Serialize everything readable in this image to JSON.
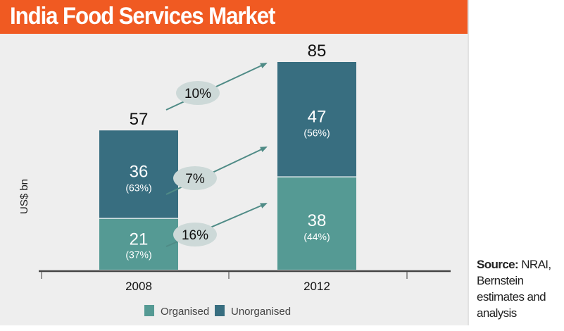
{
  "title": "India Food Services Market",
  "source": {
    "label": "Source:",
    "text": "NRAI, Bernstein estimates and analysis"
  },
  "colors": {
    "title_bar": "#f05a22",
    "organised": "#559a94",
    "unorganised": "#386e80",
    "bubble": "#cdd9d8",
    "arrow": "#4f8b86",
    "background": "#eeeeee"
  },
  "chart_data": {
    "type": "bar",
    "stacked": true,
    "title": "India Food Services Market",
    "xlabel": "",
    "ylabel": "US$ bn",
    "categories": [
      "2008",
      "2012"
    ],
    "series": [
      {
        "name": "Organised",
        "values": [
          21,
          38
        ],
        "share_labels": [
          "(37%)",
          "(44%)"
        ]
      },
      {
        "name": "Unorganised",
        "values": [
          36,
          47
        ],
        "share_labels": [
          "(63%)",
          "(56%)"
        ]
      }
    ],
    "totals": [
      57,
      85
    ],
    "growth_annotations": [
      {
        "label": "10%",
        "applies_to": "Total"
      },
      {
        "label": "7%",
        "applies_to": "Unorganised"
      },
      {
        "label": "16%",
        "applies_to": "Organised"
      }
    ],
    "ylim": [
      0,
      85
    ],
    "grid": false,
    "legend": {
      "position": "bottom",
      "entries": [
        "Organised",
        "Unorganised"
      ]
    }
  }
}
